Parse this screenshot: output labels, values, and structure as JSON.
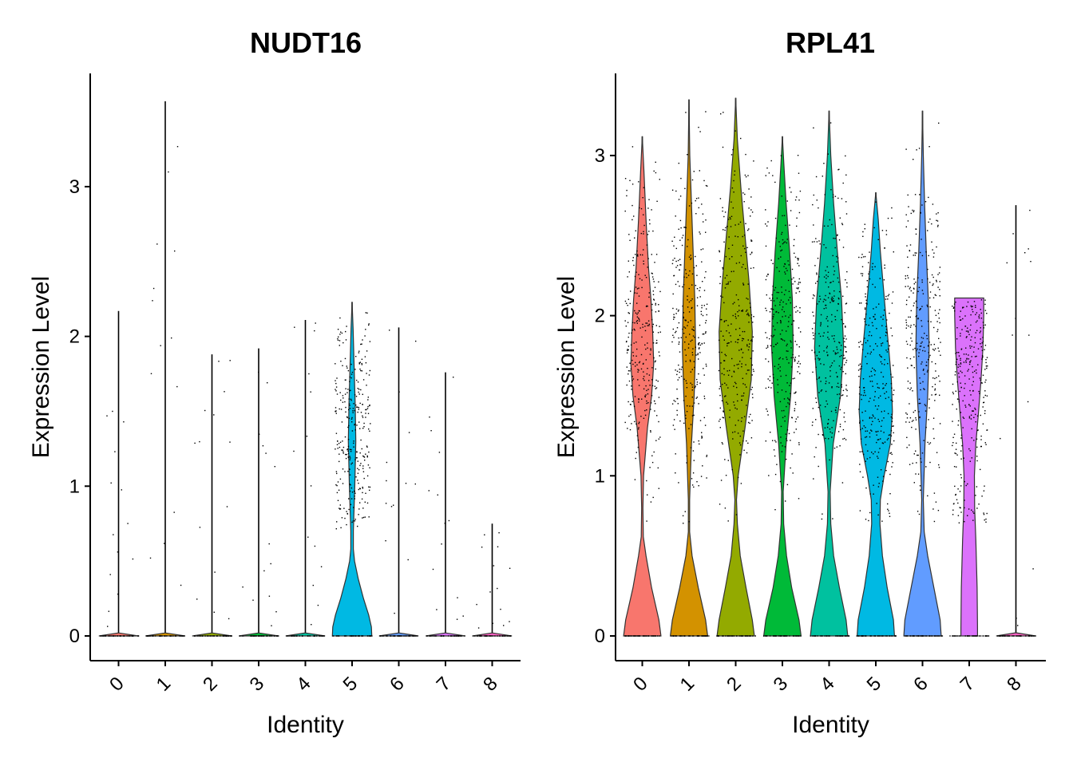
{
  "chart_data": [
    {
      "type": "violin",
      "title": "NUDT16",
      "xlabel": "Identity",
      "ylabel": "Expression Level",
      "categories": [
        "0",
        "1",
        "2",
        "3",
        "4",
        "5",
        "6",
        "7",
        "8"
      ],
      "yticks": [
        0,
        1,
        2,
        3
      ],
      "ylim": [
        -0.17,
        3.8
      ],
      "colors": [
        "#F8766D",
        "#D39200",
        "#93AA00",
        "#00BA38",
        "#00C19F",
        "#00B9E3",
        "#619CFF",
        "#DB72FB",
        "#FF61C3"
      ],
      "max_values": [
        2.17,
        3.57,
        1.88,
        1.92,
        2.11,
        2.23,
        2.06,
        1.76,
        0.75
      ],
      "shapes": [
        {
          "y": [
            0,
            0.02
          ],
          "w": [
            0.95,
            0.0
          ]
        },
        {
          "y": [
            0,
            0.02
          ],
          "w": [
            0.95,
            0.0
          ]
        },
        {
          "y": [
            0,
            0.02
          ],
          "w": [
            0.95,
            0.0
          ]
        },
        {
          "y": [
            0,
            0.02
          ],
          "w": [
            0.95,
            0.0
          ]
        },
        {
          "y": [
            0,
            0.02
          ],
          "w": [
            0.95,
            0.0
          ]
        },
        {
          "y": [
            0,
            0.06,
            0.14,
            0.25,
            0.38,
            0.5,
            0.58,
            0.7,
            1.0,
            1.3,
            1.55,
            1.85,
            2.05,
            2.23
          ],
          "w": [
            0.95,
            0.93,
            0.8,
            0.55,
            0.3,
            0.12,
            0.06,
            0.06,
            0.13,
            0.18,
            0.15,
            0.09,
            0.05,
            0.0
          ]
        },
        {
          "y": [
            0,
            0.02
          ],
          "w": [
            0.95,
            0.0
          ]
        },
        {
          "y": [
            0,
            0.02
          ],
          "w": [
            0.95,
            0.0
          ]
        },
        {
          "y": [
            0,
            0.02
          ],
          "w": [
            0.95,
            0.0
          ]
        }
      ]
    },
    {
      "type": "violin",
      "title": "RPL41",
      "xlabel": "Identity",
      "ylabel": "Expression Level",
      "categories": [
        "0",
        "1",
        "2",
        "3",
        "4",
        "5",
        "6",
        "7",
        "8"
      ],
      "yticks": [
        0,
        1,
        2,
        3
      ],
      "ylim": [
        -0.17,
        3.5
      ],
      "colors": [
        "#F8766D",
        "#D39200",
        "#93AA00",
        "#00BA38",
        "#00C19F",
        "#00B9E3",
        "#619CFF",
        "#DB72FB",
        "#FF61C3"
      ],
      "max_values": [
        3.12,
        3.35,
        3.36,
        3.12,
        3.28,
        2.77,
        3.28,
        2.11,
        2.69
      ],
      "shapes": [
        {
          "y": [
            0,
            0.1,
            0.3,
            0.5,
            0.62,
            0.8,
            1.0,
            1.3,
            1.5,
            1.7,
            1.9,
            2.1,
            2.3,
            2.6,
            2.9,
            3.12
          ],
          "w": [
            0.9,
            0.8,
            0.45,
            0.18,
            0.05,
            0.03,
            0.06,
            0.25,
            0.45,
            0.55,
            0.5,
            0.42,
            0.3,
            0.18,
            0.08,
            0.0
          ]
        },
        {
          "y": [
            0,
            0.1,
            0.3,
            0.5,
            0.65,
            0.85,
            1.2,
            1.5,
            1.8,
            2.1,
            2.4,
            2.7,
            3.0,
            3.35
          ],
          "w": [
            0.9,
            0.8,
            0.45,
            0.15,
            0.03,
            0.03,
            0.12,
            0.25,
            0.32,
            0.28,
            0.2,
            0.12,
            0.04,
            0.0
          ]
        },
        {
          "y": [
            0,
            0.1,
            0.3,
            0.5,
            0.7,
            0.85,
            1.0,
            1.3,
            1.6,
            1.9,
            2.2,
            2.5,
            2.8,
            3.1,
            3.36
          ],
          "w": [
            0.9,
            0.8,
            0.5,
            0.22,
            0.08,
            0.04,
            0.12,
            0.45,
            0.75,
            0.8,
            0.65,
            0.45,
            0.25,
            0.08,
            0.0
          ]
        },
        {
          "y": [
            0,
            0.1,
            0.3,
            0.5,
            0.7,
            0.9,
            1.2,
            1.5,
            1.8,
            2.1,
            2.4,
            2.7,
            2.95,
            3.12
          ],
          "w": [
            0.9,
            0.8,
            0.45,
            0.2,
            0.06,
            0.04,
            0.18,
            0.4,
            0.52,
            0.48,
            0.35,
            0.18,
            0.07,
            0.0
          ]
        },
        {
          "y": [
            0,
            0.1,
            0.3,
            0.5,
            0.7,
            0.9,
            1.2,
            1.5,
            1.8,
            2.1,
            2.4,
            2.7,
            3.0,
            3.28
          ],
          "w": [
            0.9,
            0.82,
            0.5,
            0.22,
            0.08,
            0.05,
            0.2,
            0.55,
            0.7,
            0.6,
            0.4,
            0.22,
            0.08,
            0.0
          ]
        },
        {
          "y": [
            0,
            0.1,
            0.3,
            0.5,
            0.7,
            0.85,
            1.0,
            1.2,
            1.4,
            1.6,
            1.8,
            2.0,
            2.2,
            2.4,
            2.6,
            2.77
          ],
          "w": [
            0.9,
            0.85,
            0.55,
            0.32,
            0.2,
            0.22,
            0.4,
            0.7,
            0.8,
            0.75,
            0.62,
            0.48,
            0.35,
            0.22,
            0.12,
            0.0
          ]
        },
        {
          "y": [
            0,
            0.1,
            0.3,
            0.5,
            0.65,
            0.85,
            1.2,
            1.5,
            1.8,
            2.1,
            2.4,
            2.7,
            3.0,
            3.28
          ],
          "w": [
            0.9,
            0.85,
            0.55,
            0.25,
            0.08,
            0.04,
            0.12,
            0.25,
            0.32,
            0.28,
            0.18,
            0.1,
            0.04,
            0.0
          ]
        },
        {
          "y": [
            0,
            0.05,
            0.3,
            0.6,
            0.8,
            1.0,
            1.2,
            1.4,
            1.6,
            1.8,
            2.0,
            2.11
          ],
          "w": [
            0.4,
            0.4,
            0.38,
            0.32,
            0.26,
            0.25,
            0.32,
            0.45,
            0.57,
            0.66,
            0.7,
            0.7
          ]
        },
        {
          "y": [
            0,
            0.02
          ],
          "w": [
            0.95,
            0.0
          ]
        }
      ]
    }
  ]
}
